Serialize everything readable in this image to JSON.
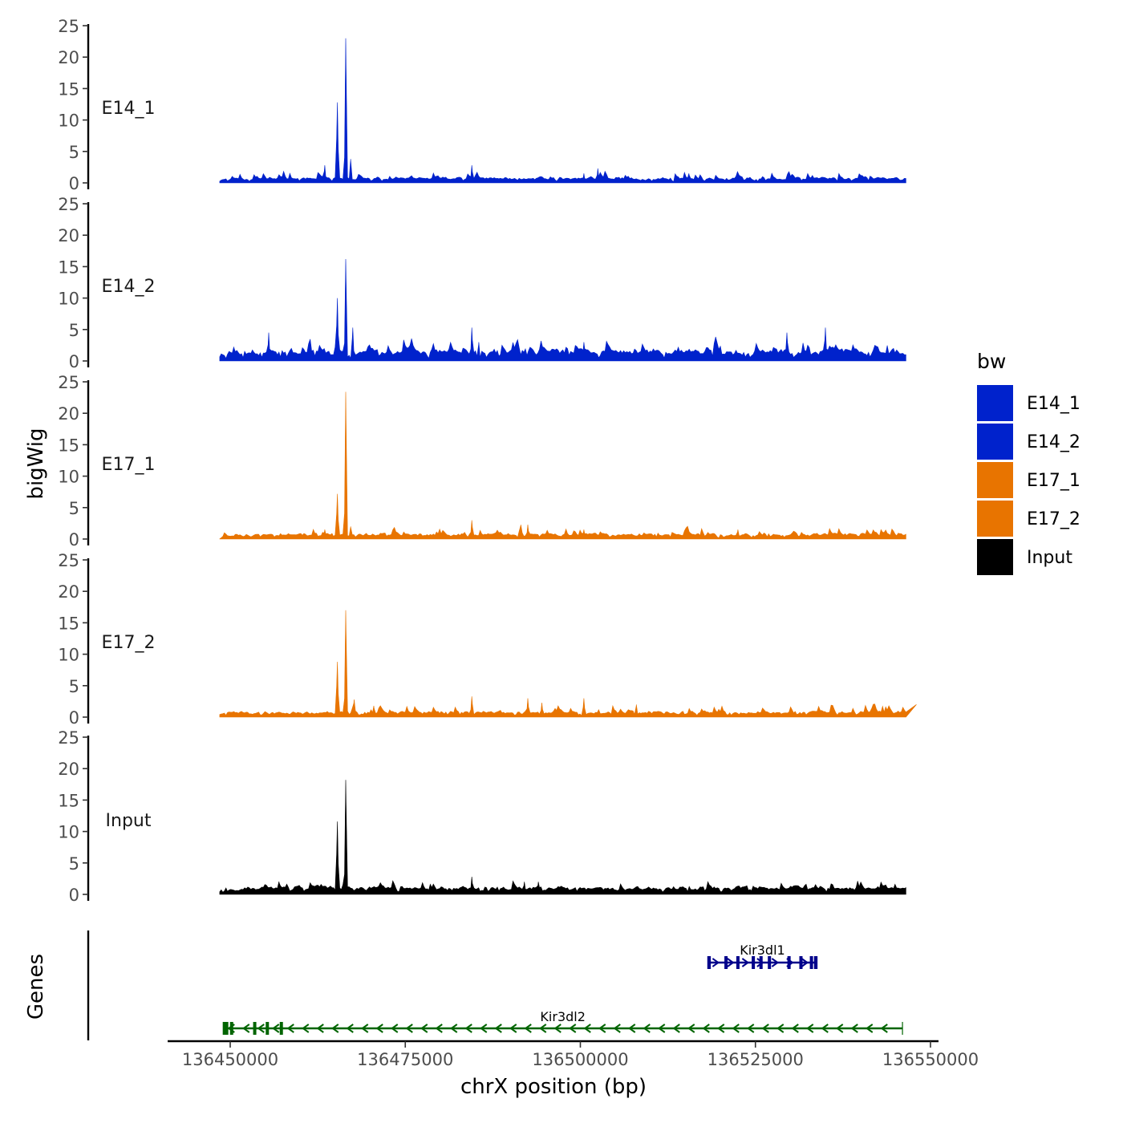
{
  "chart_data": {
    "type": "area",
    "title": "",
    "ylabel": "bigWig",
    "xlabel": "chrX position (bp)",
    "genes_label": "Genes",
    "ylim": [
      0,
      25
    ],
    "yticks": [
      0,
      5,
      10,
      15,
      20,
      25
    ],
    "xlim": [
      136445000,
      136550000
    ],
    "xticks": [
      136450000,
      136475000,
      136500000,
      136525000,
      136550000
    ],
    "xtick_labels": [
      "136450000",
      "136475000",
      "136500000",
      "136525000",
      "136550000"
    ],
    "signal_range": [
      136448500,
      136546500
    ],
    "legend": {
      "title": "bw",
      "position": "right",
      "entries": [
        {
          "name": "E14_1",
          "color": "#0022CC"
        },
        {
          "name": "E14_2",
          "color": "#0022CC"
        },
        {
          "name": "E17_1",
          "color": "#E87400"
        },
        {
          "name": "E17_2",
          "color": "#E87400"
        },
        {
          "name": "Input",
          "color": "#000000"
        }
      ]
    },
    "series": [
      {
        "name": "E14_1",
        "color": "#0022CC",
        "base_level": 0.5,
        "noise": 0.9,
        "seed": 11,
        "peaks": [
          [
            136463500,
            2.8
          ],
          [
            136465300,
            12.8
          ],
          [
            136466500,
            23.0
          ],
          [
            136467200,
            3.8
          ],
          [
            136484500,
            2.8
          ],
          [
            136502500,
            2.3
          ],
          [
            136500500,
            1.5
          ],
          [
            136515500,
            1.5
          ]
        ]
      },
      {
        "name": "E14_2",
        "color": "#0022CC",
        "base_level": 1.2,
        "noise": 1.5,
        "seed": 23,
        "peaks": [
          [
            136455500,
            4.5
          ],
          [
            136465300,
            10.0
          ],
          [
            136466500,
            16.2
          ],
          [
            136467500,
            5.3
          ],
          [
            136484500,
            5.3
          ],
          [
            136485500,
            3.0
          ],
          [
            136529500,
            4.5
          ],
          [
            136535000,
            5.3
          ],
          [
            136500500,
            3.0
          ]
        ]
      },
      {
        "name": "E17_1",
        "color": "#E87400",
        "base_level": 0.5,
        "noise": 0.9,
        "seed": 37,
        "peaks": [
          [
            136463500,
            1.5
          ],
          [
            136465300,
            7.2
          ],
          [
            136466500,
            23.4
          ],
          [
            136467200,
            2.0
          ],
          [
            136484500,
            3.0
          ],
          [
            136491500,
            2.3
          ],
          [
            136492500,
            2.3
          ],
          [
            136500500,
            1.5
          ],
          [
            136522500,
            1.5
          ]
        ]
      },
      {
        "name": "E17_2",
        "color": "#E87400",
        "base_level": 0.5,
        "noise": 1.0,
        "seed": 41,
        "peaks": [
          [
            136465300,
            8.8
          ],
          [
            136466500,
            17.0
          ],
          [
            136467700,
            2.8
          ],
          [
            136470500,
            1.8
          ],
          [
            136484500,
            3.3
          ],
          [
            136492500,
            3.0
          ],
          [
            136494500,
            2.3
          ],
          [
            136500500,
            3.0
          ],
          [
            136508000,
            2.0
          ],
          [
            136548000,
            2.0
          ]
        ]
      },
      {
        "name": "Input",
        "color": "#000000",
        "base_level": 0.8,
        "noise": 1.0,
        "seed": 53,
        "peaks": [
          [
            136465300,
            11.6
          ],
          [
            136466500,
            18.2
          ],
          [
            136484500,
            2.8
          ],
          [
            136492000,
            2.0
          ],
          [
            136494000,
            2.0
          ],
          [
            136457000,
            1.8
          ]
        ]
      }
    ],
    "genes": [
      {
        "name": "Kir3dl1",
        "color": "#00008B",
        "strand": "+",
        "start": 136518200,
        "end": 136533800,
        "exons": [
          136518400,
          136520800,
          136522500,
          136524700,
          136525800,
          136527000,
          136529800,
          136531500,
          136533000,
          136533600
        ]
      },
      {
        "name": "Kir3dl2",
        "color": "#006400",
        "strand": "-",
        "start": 136449000,
        "end": 136546000,
        "exons": [
          136449200,
          136449500,
          136450200,
          136453500,
          136455300,
          136457300
        ]
      }
    ]
  }
}
